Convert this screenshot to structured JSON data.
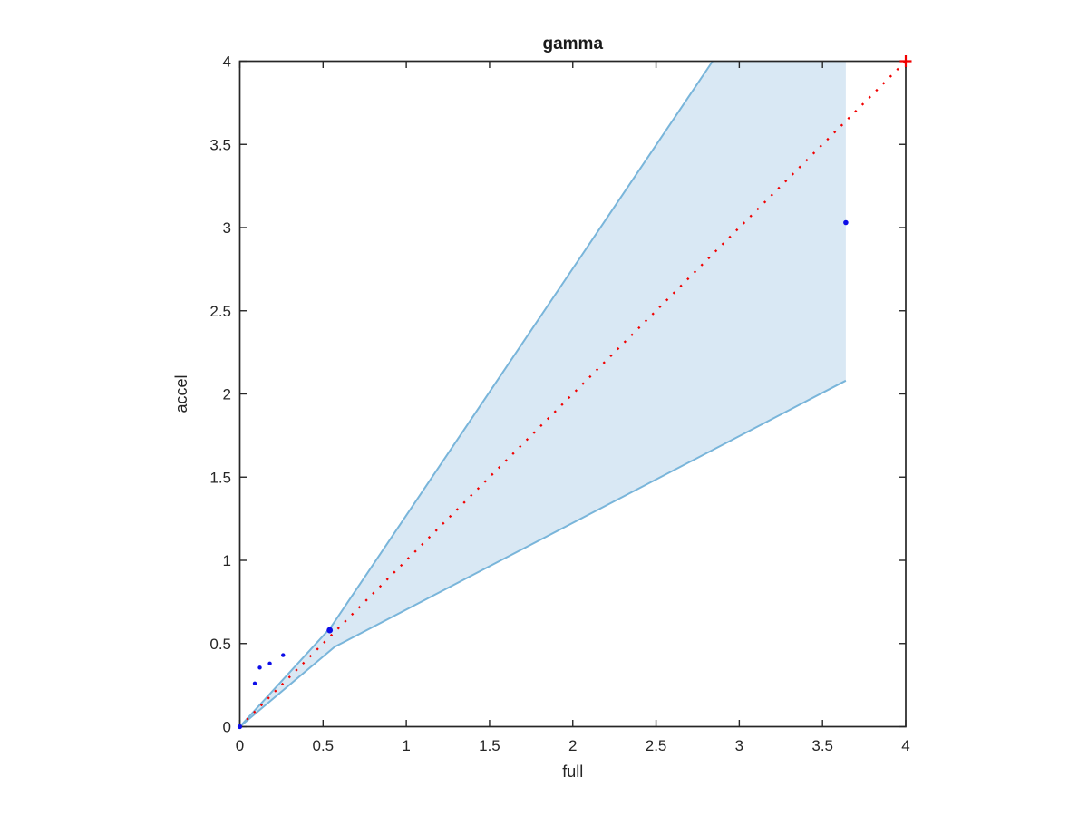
{
  "figure": {
    "background": "#ffffff"
  },
  "chart_data": {
    "type": "scatter",
    "title": "gamma",
    "xlabel": "full",
    "ylabel": "accel",
    "xlim": [
      0,
      4
    ],
    "ylim": [
      0,
      4
    ],
    "xticks": [
      0,
      0.5,
      1,
      1.5,
      2,
      2.5,
      3,
      3.5,
      4
    ],
    "yticks": [
      0,
      0.5,
      1,
      1.5,
      2,
      2.5,
      3,
      3.5,
      4
    ],
    "grid": false,
    "legend": false,
    "axis_color": "#262626",
    "confidence_band": {
      "fill_color": "#d9e8f4",
      "edge_color": "#79b5da",
      "fill_polygon": [
        [
          0,
          0
        ],
        [
          0.545,
          0.595
        ],
        [
          2.84,
          4
        ],
        [
          3.64,
          4
        ],
        [
          3.64,
          2.08
        ],
        [
          0.57,
          0.48
        ]
      ],
      "upper_edge": [
        [
          0,
          0
        ],
        [
          0.545,
          0.595
        ],
        [
          2.84,
          4
        ]
      ],
      "lower_edge": [
        [
          0,
          0
        ],
        [
          0.57,
          0.48
        ],
        [
          3.64,
          2.08
        ]
      ]
    },
    "identity_line": {
      "color": "#f10000",
      "style": "dotted",
      "from": [
        0,
        0
      ],
      "to": [
        4,
        4
      ],
      "plus_markers": [
        [
          4,
          4
        ]
      ]
    },
    "scatter_series": {
      "name": "accel vs full",
      "color": "#0d0de8",
      "points": [
        {
          "x": 0,
          "y": 0,
          "r": 2.6
        },
        {
          "x": 0.09,
          "y": 0.26,
          "r": 2.2
        },
        {
          "x": 0.12,
          "y": 0.355,
          "r": 2.2
        },
        {
          "x": 0.18,
          "y": 0.38,
          "r": 2.2
        },
        {
          "x": 0.26,
          "y": 0.43,
          "r": 2.2
        },
        {
          "x": 0.54,
          "y": 0.58,
          "r": 3.4
        },
        {
          "x": 3.64,
          "y": 3.03,
          "r": 2.8
        }
      ]
    }
  }
}
